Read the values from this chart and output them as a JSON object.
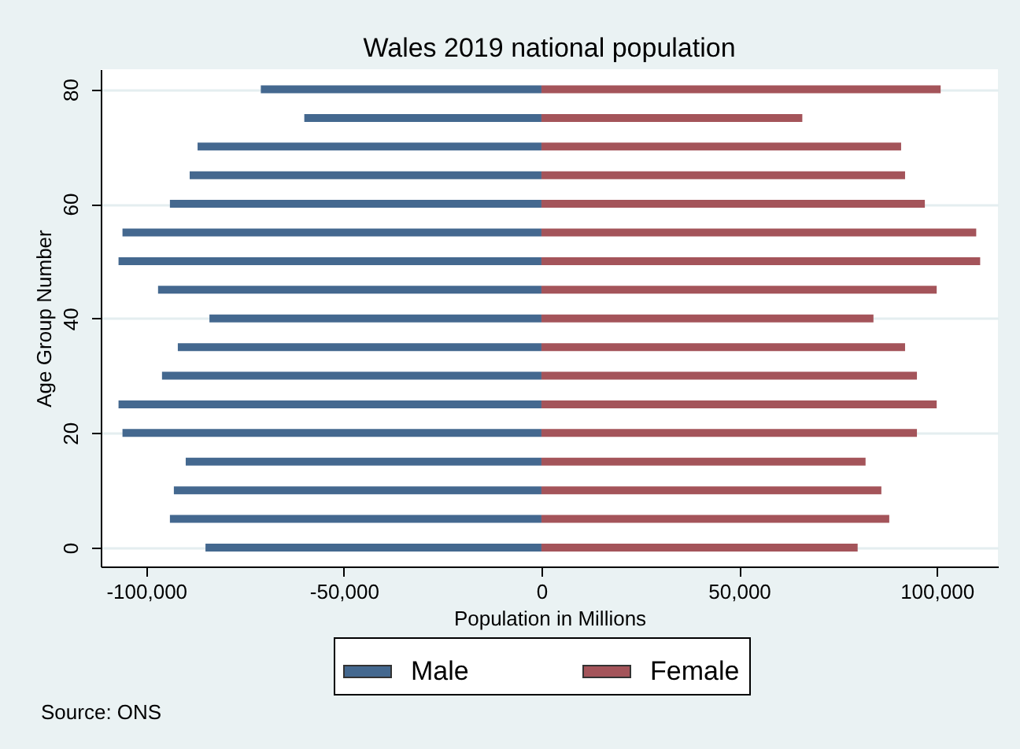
{
  "chart_data": {
    "type": "bar",
    "orientation": "horizontal",
    "stacked": true,
    "title": "Wales 2019 national population",
    "xlabel": "Population in Millions",
    "ylabel": "Age Group Number",
    "x": [
      0,
      5,
      10,
      15,
      20,
      25,
      30,
      35,
      40,
      45,
      50,
      55,
      60,
      65,
      70,
      75,
      80
    ],
    "series": [
      {
        "name": "Male",
        "color": "#44688f",
        "values": [
          -85000,
          -94000,
          -93000,
          -90000,
          -106000,
          -107000,
          -96000,
          -92000,
          -84000,
          -97000,
          -107000,
          -106000,
          -94000,
          -89000,
          -87000,
          -60000,
          -71000
        ]
      },
      {
        "name": "Female",
        "color": "#a4545a",
        "values": [
          80000,
          88000,
          86000,
          82000,
          95000,
          100000,
          95000,
          92000,
          84000,
          100000,
          111000,
          110000,
          97000,
          92000,
          91000,
          66000,
          101000
        ]
      }
    ],
    "xlim": [
      -111500,
      115500
    ],
    "xticks": [
      {
        "value": -100000,
        "label": "-100,000"
      },
      {
        "value": -50000,
        "label": "-50,000"
      },
      0,
      {
        "value": 50000,
        "label": "50,000"
      },
      {
        "value": 100000,
        "label": "100,000"
      }
    ],
    "ylim": [
      -3.3,
      83.5
    ],
    "yticks": [
      0,
      20,
      40,
      60,
      80
    ],
    "grid": "y",
    "legend": "bottom",
    "annotations": [
      "Source: ONS"
    ]
  }
}
